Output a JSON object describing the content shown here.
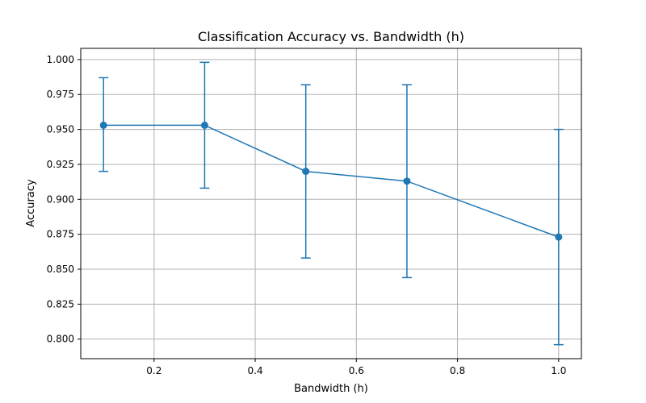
{
  "chart_data": {
    "type": "line",
    "title": "Classification Accuracy vs. Bandwidth (h)",
    "xlabel": "Bandwidth (h)",
    "ylabel": "Accuracy",
    "x": [
      0.1,
      0.3,
      0.5,
      0.7,
      1.0
    ],
    "series": [
      {
        "values": [
          0.953,
          0.953,
          0.92,
          0.913,
          0.873
        ],
        "error_low": [
          0.92,
          0.908,
          0.858,
          0.844,
          0.796
        ],
        "error_high": [
          0.987,
          0.998,
          0.982,
          0.982,
          0.95
        ],
        "color": "#1f77b4",
        "marker": "circle"
      }
    ],
    "xlim": [
      0.055,
      1.045
    ],
    "ylim": [
      0.786,
      1.008
    ],
    "xticks": [
      0.2,
      0.4,
      0.6,
      0.8,
      1.0
    ],
    "xtick_labels": [
      "0.2",
      "0.4",
      "0.6",
      "0.8",
      "1.0"
    ],
    "yticks": [
      0.8,
      0.825,
      0.85,
      0.875,
      0.9,
      0.925,
      0.95,
      0.975,
      1.0
    ],
    "ytick_labels": [
      "0.800",
      "0.825",
      "0.850",
      "0.875",
      "0.900",
      "0.925",
      "0.950",
      "0.975",
      "1.000"
    ],
    "grid": true,
    "legend": "none"
  }
}
